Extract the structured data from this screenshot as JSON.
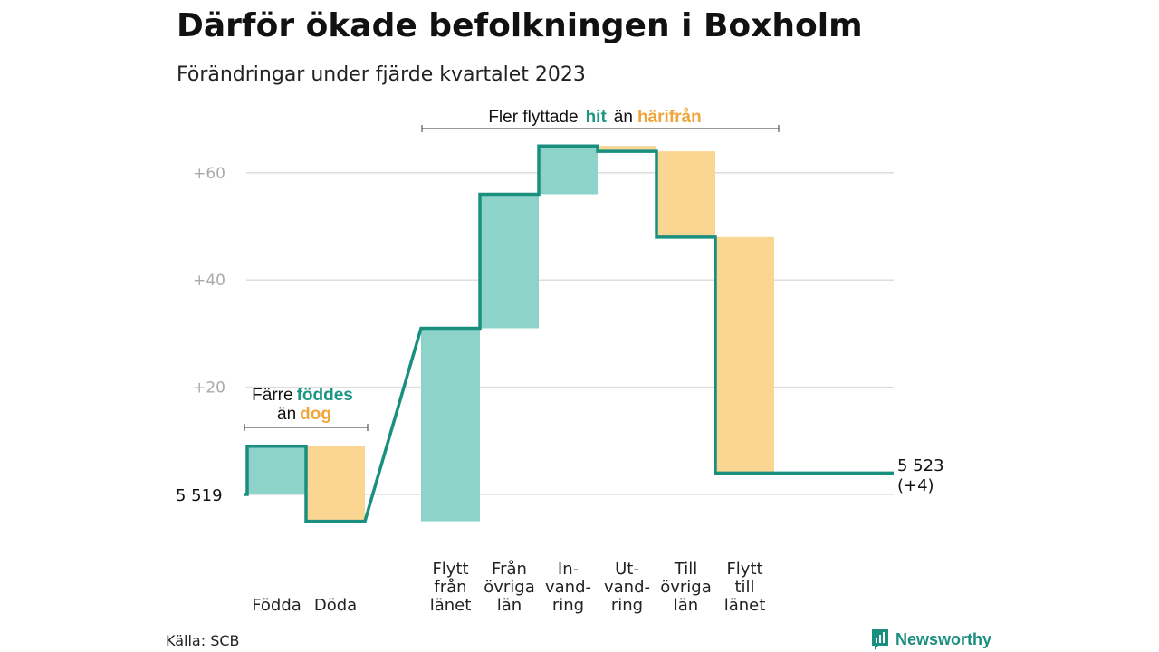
{
  "header": {
    "title": "Därför ökade befolkningen i Boxholm",
    "subtitle": "Förändringar under fjärde kvartalet 2023"
  },
  "footer": {
    "source": "Källa: SCB",
    "brand": "Newsworthy"
  },
  "colors": {
    "increase": "#8dd3c9",
    "decrease": "#fbd592",
    "line": "#1a8f80",
    "hit_text": "#1a9682",
    "harifran_text": "#f0a53a",
    "grid": "#dddddd",
    "tick_text": "#aaaaaa"
  },
  "chart_data": {
    "type": "waterfall",
    "start_value": 5519,
    "end_value": 5523,
    "start_label": "5 519",
    "end_label": "5 523",
    "end_change_label": "(+4)",
    "y_ticks": [
      {
        "value": 20,
        "label": "+20"
      },
      {
        "value": 40,
        "label": "+40"
      },
      {
        "value": 60,
        "label": "+60"
      }
    ],
    "ylim": [
      -6,
      66
    ],
    "grid": true,
    "steps": [
      {
        "label": [
          "Födda"
        ],
        "change": 9
      },
      {
        "label": [
          "Döda"
        ],
        "change": -14
      },
      {
        "label": [
          "Flytt",
          "från",
          "länet"
        ],
        "change": 36
      },
      {
        "label": [
          "Från",
          "övriga",
          "län"
        ],
        "change": 25
      },
      {
        "label": [
          "In-",
          "vand-",
          "ring"
        ],
        "change": 9
      },
      {
        "label": [
          "Ut-",
          "vand-",
          "ring"
        ],
        "change": -1
      },
      {
        "label": [
          "Till",
          "övriga",
          "län"
        ],
        "change": -16
      },
      {
        "label": [
          "Flytt",
          "till",
          "länet"
        ],
        "change": -44
      }
    ],
    "annotations": {
      "births": {
        "prefix": "Färre",
        "highlight1": "föddes",
        "connector": "än",
        "highlight2": "dog"
      },
      "moves": {
        "prefix": "Fler flyttade",
        "highlight1": "hit",
        "connector": "än",
        "highlight2": "härifrån"
      }
    }
  }
}
